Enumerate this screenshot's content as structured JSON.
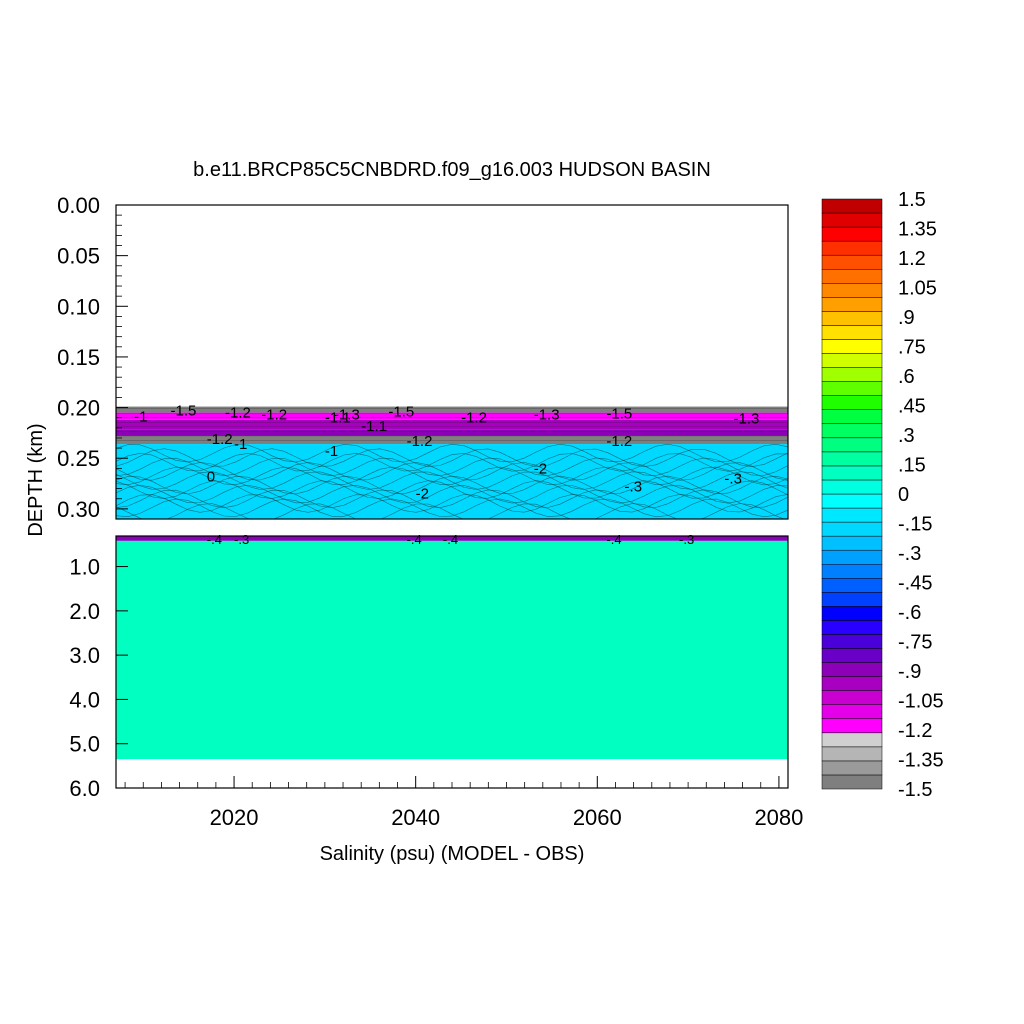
{
  "chart_data": {
    "type": "heatmap",
    "title": "b.e11.BRCP85C5CNBDRD.f09_g16.003 HUDSON BASIN",
    "xlabel": "Salinity (psu) (MODEL - OBS)",
    "ylabel": "DEPTH (km)",
    "x_ticks": [
      2020,
      2040,
      2060,
      2080
    ],
    "x_tick_labels": [
      "2020",
      "2040",
      "2060",
      "2080"
    ],
    "xlim": [
      2007,
      2081
    ],
    "upper_panel": {
      "ylim": [
        0.0,
        0.31
      ],
      "y_ticks": [
        0.0,
        0.05,
        0.1,
        0.15,
        0.2,
        0.25,
        0.3
      ],
      "y_tick_labels": [
        "0.00",
        "0.05",
        "0.10",
        "0.15",
        "0.20",
        "0.25",
        "0.30"
      ],
      "surface_depth": 0.2,
      "bands": [
        {
          "from": 0.199,
          "to": 0.205,
          "value": -1.5
        },
        {
          "from": 0.205,
          "to": 0.212,
          "value": -1.2
        },
        {
          "from": 0.212,
          "to": 0.222,
          "value": -1.0
        },
        {
          "from": 0.222,
          "to": 0.228,
          "value": -0.9
        },
        {
          "from": 0.228,
          "to": 0.236,
          "value": -1.5
        },
        {
          "from": 0.236,
          "to": 0.31,
          "value": -0.2
        }
      ],
      "contour_labels": [
        {
          "x": 2013,
          "y": 0.203,
          "text": "-1.5"
        },
        {
          "x": 2009,
          "y": 0.209,
          "text": "-1"
        },
        {
          "x": 2019,
          "y": 0.205,
          "text": "-1.2"
        },
        {
          "x": 2023,
          "y": 0.207,
          "text": "-1.2"
        },
        {
          "x": 2030,
          "y": 0.21,
          "text": "-1.1"
        },
        {
          "x": 2031,
          "y": 0.207,
          "text": "-1.3"
        },
        {
          "x": 2037,
          "y": 0.204,
          "text": "-1.5"
        },
        {
          "x": 2034,
          "y": 0.218,
          "text": "-1.1"
        },
        {
          "x": 2045,
          "y": 0.21,
          "text": "-1.2"
        },
        {
          "x": 2053,
          "y": 0.207,
          "text": "-1.3"
        },
        {
          "x": 2061,
          "y": 0.206,
          "text": "-1.5"
        },
        {
          "x": 2075,
          "y": 0.211,
          "text": "-1.3"
        },
        {
          "x": 2017,
          "y": 0.231,
          "text": "-1.2"
        },
        {
          "x": 2020,
          "y": 0.236,
          "text": "-1"
        },
        {
          "x": 2039,
          "y": 0.233,
          "text": "-1.2"
        },
        {
          "x": 2061,
          "y": 0.233,
          "text": "-1.2"
        },
        {
          "x": 2017,
          "y": 0.268,
          "text": "0"
        },
        {
          "x": 2030,
          "y": 0.243,
          "text": "-1"
        },
        {
          "x": 2040,
          "y": 0.285,
          "text": "-2"
        },
        {
          "x": 2053,
          "y": 0.26,
          "text": "-2"
        },
        {
          "x": 2063,
          "y": 0.278,
          "text": "-.3"
        },
        {
          "x": 2074,
          "y": 0.27,
          "text": "-.3"
        }
      ]
    },
    "lower_panel": {
      "ylim": [
        0.31,
        6.0
      ],
      "y_ticks": [
        1.0,
        2.0,
        3.0,
        4.0,
        5.0,
        6.0
      ],
      "y_tick_labels": [
        "1.0",
        "2.0",
        "3.0",
        "4.0",
        "5.0",
        "6.0"
      ],
      "bottom_depth": 5.35,
      "bands": [
        {
          "from": 0.31,
          "to": 0.42,
          "value": -0.9
        },
        {
          "from": 0.42,
          "to": 5.35,
          "value": 0.1
        }
      ],
      "contour_labels": [
        {
          "x": 2017,
          "y": 0.45,
          "text": "-.4"
        },
        {
          "x": 2020,
          "y": 0.45,
          "text": "-.3"
        },
        {
          "x": 2039,
          "y": 0.45,
          "text": "-.4"
        },
        {
          "x": 2043,
          "y": 0.45,
          "text": "-.4"
        },
        {
          "x": 2061,
          "y": 0.45,
          "text": "-.4"
        },
        {
          "x": 2069,
          "y": 0.45,
          "text": "-.3"
        }
      ]
    },
    "colorbar": {
      "min": -1.5,
      "max": 1.5,
      "tick_labels": [
        "1.5",
        "1.35",
        "1.2",
        "1.05",
        ".9",
        ".75",
        ".6",
        ".45",
        ".3",
        ".15",
        "0",
        "-.15",
        "-.3",
        "-.45",
        "-.6",
        "-.75",
        "-.9",
        "-1.05",
        "-1.2",
        "-1.35",
        "-1.5"
      ],
      "tick_values": [
        1.5,
        1.35,
        1.2,
        1.05,
        0.9,
        0.75,
        0.6,
        0.45,
        0.3,
        0.15,
        0.0,
        -0.15,
        -0.3,
        -0.45,
        -0.6,
        -0.75,
        -0.9,
        -1.05,
        -1.2,
        -1.35,
        -1.5
      ],
      "colors": [
        "#7f7f7f",
        "#9a9a9a",
        "#b5b5b5",
        "#d0d0d0",
        "#ff00ff",
        "#e400e8",
        "#c800d0",
        "#a800c0",
        "#8c00b8",
        "#6a00c8",
        "#4a00d8",
        "#2800ff",
        "#0000ff",
        "#0040ff",
        "#0060ff",
        "#0080ff",
        "#00a0ff",
        "#00c0ff",
        "#00d8ff",
        "#00e8ff",
        "#00ffff",
        "#00ffe0",
        "#00ffc0",
        "#00ffa0",
        "#00ff80",
        "#00ff60",
        "#00ff40",
        "#20ff00",
        "#60ff00",
        "#a0ff00",
        "#d0ff00",
        "#ffff00",
        "#ffe000",
        "#ffc000",
        "#ffa000",
        "#ff8800",
        "#ff7000",
        "#ff5000",
        "#ff3000",
        "#ff0000",
        "#e00000",
        "#c00000"
      ]
    }
  }
}
